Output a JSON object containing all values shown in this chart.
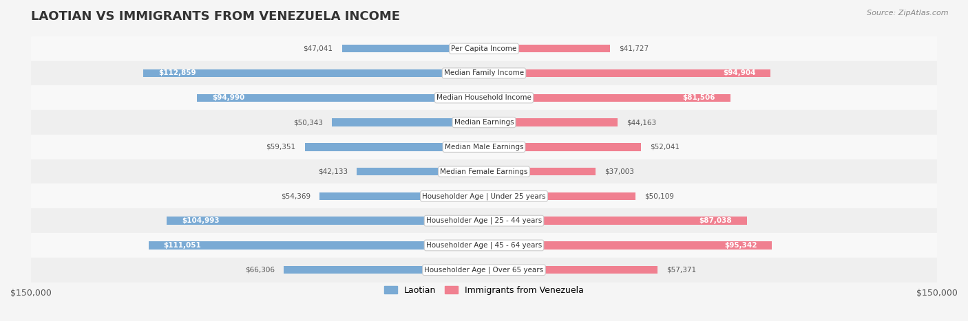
{
  "title": "LAOTIAN VS IMMIGRANTS FROM VENEZUELA INCOME",
  "source": "Source: ZipAtlas.com",
  "categories": [
    "Per Capita Income",
    "Median Family Income",
    "Median Household Income",
    "Median Earnings",
    "Median Male Earnings",
    "Median Female Earnings",
    "Householder Age | Under 25 years",
    "Householder Age | 25 - 44 years",
    "Householder Age | 45 - 64 years",
    "Householder Age | Over 65 years"
  ],
  "laotian_values": [
    47041,
    112859,
    94990,
    50343,
    59351,
    42133,
    54369,
    104993,
    111051,
    66306
  ],
  "venezuela_values": [
    41727,
    94904,
    81506,
    44163,
    52041,
    37003,
    50109,
    87038,
    95342,
    57371
  ],
  "laotian_color": "#7aaad4",
  "venezuela_color": "#f08090",
  "laotian_label": "Laotian",
  "venezuela_label": "Immigrants from Venezuela",
  "x_max": 150000,
  "label_fontsize": 8.5,
  "title_fontsize": 13,
  "bg_color": "#f5f5f5",
  "row_bg_color": "#ffffff",
  "row_alt_color": "#f0f0f0"
}
